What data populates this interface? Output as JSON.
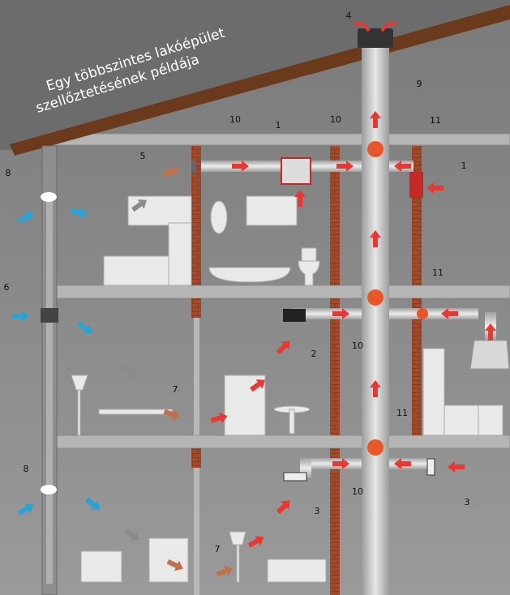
{
  "title": [
    "Egy többszintes lakóépület",
    "szellőztetésének példája"
  ],
  "labels": [
    "4",
    "9",
    "10",
    "1",
    "10",
    "11",
    "5",
    "1",
    "8",
    "6",
    "11",
    "2",
    "10",
    "7",
    "11",
    "8",
    "10",
    "3",
    "3",
    "7"
  ]
}
